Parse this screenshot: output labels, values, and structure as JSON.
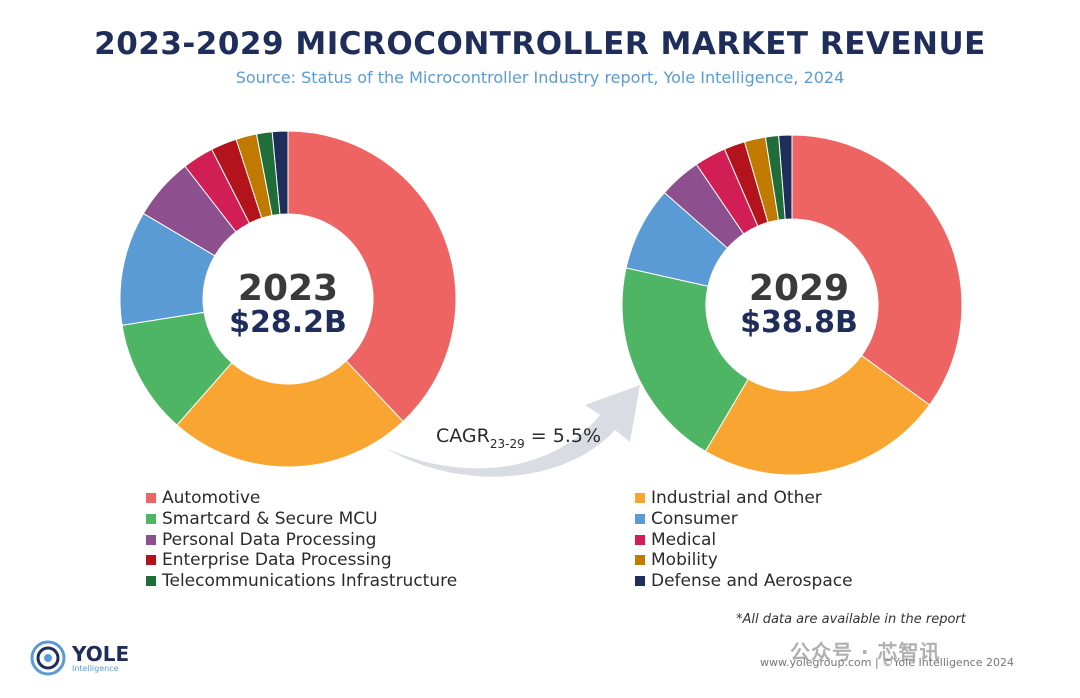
{
  "title": "2023-2029 MICROCONTROLLER MARKET REVENUE",
  "subtitle": "Source: Status of the Microcontroller Industry report, Yole Intelligence, 2024",
  "colors": {
    "Automotive": "#ee6462",
    "Industrial and Other": "#f8a531",
    "Smartcard & Secure MCU": "#4db564",
    "Consumer": "#5b9bd5",
    "Personal Data Processing": "#8e4f8e",
    "Medical": "#d11f55",
    "Enterprise Data Processing": "#b3141c",
    "Mobility": "#c07a00",
    "Telecommunications Infrastructure": "#1f6e3a",
    "Defense and Aerospace": "#1e2d5a"
  },
  "chart_data": [
    {
      "type": "pie",
      "year_label": "2023",
      "total_label": "$28.2B",
      "slices": [
        {
          "name": "Automotive",
          "value": 38.0
        },
        {
          "name": "Industrial and Other",
          "value": 23.5
        },
        {
          "name": "Smartcard & Secure MCU",
          "value": 11.0
        },
        {
          "name": "Consumer",
          "value": 11.0
        },
        {
          "name": "Personal Data Processing",
          "value": 6.0
        },
        {
          "name": "Medical",
          "value": 3.0
        },
        {
          "name": "Enterprise Data Processing",
          "value": 2.5
        },
        {
          "name": "Mobility",
          "value": 2.0
        },
        {
          "name": "Telecommunications Infrastructure",
          "value": 1.5
        },
        {
          "name": "Defense and Aerospace",
          "value": 1.5
        }
      ]
    },
    {
      "type": "pie",
      "year_label": "2029",
      "total_label": "$38.8B",
      "slices": [
        {
          "name": "Automotive",
          "value": 35.0
        },
        {
          "name": "Industrial and Other",
          "value": 23.5
        },
        {
          "name": "Smartcard & Secure MCU",
          "value": 20.0
        },
        {
          "name": "Consumer",
          "value": 8.0
        },
        {
          "name": "Personal Data Processing",
          "value": 4.0
        },
        {
          "name": "Medical",
          "value": 3.0
        },
        {
          "name": "Enterprise Data Processing",
          "value": 2.0
        },
        {
          "name": "Mobility",
          "value": 2.0
        },
        {
          "name": "Telecommunications Infrastructure",
          "value": 1.25
        },
        {
          "name": "Defense and Aerospace",
          "value": 1.25
        }
      ]
    }
  ],
  "cagr": {
    "prefix": "CAGR",
    "subscript": "23-29",
    "suffix": " = 5.5%"
  },
  "legend": [
    "Automotive",
    "Industrial and Other",
    "Smartcard & Secure MCU",
    "Consumer",
    "Personal Data Processing",
    "Medical",
    "Enterprise Data Processing",
    "Mobility",
    "Telecommunications Infrastructure",
    "Defense and Aerospace"
  ],
  "note": "*All data are available in the report",
  "logo": {
    "name": "YOLE",
    "sub": "Intelligence"
  },
  "footer": "www.yolegroup.com | ©Yole Intelligence 2024",
  "watermark": "公众号 · 芯智讯"
}
